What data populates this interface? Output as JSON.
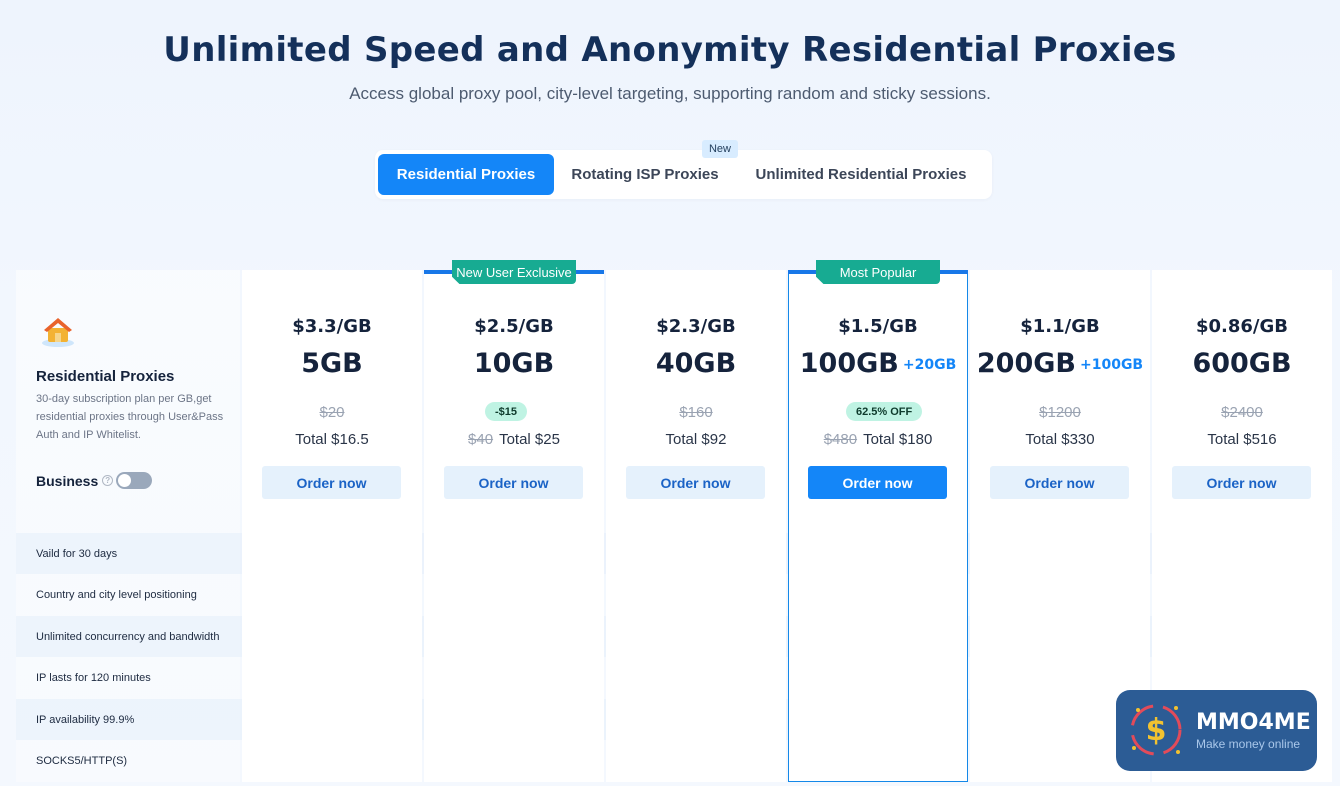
{
  "header": {
    "title": "Unlimited Speed and Anonymity Residential Proxies",
    "subtitle": "Access global proxy pool, city-level targeting, supporting random and sticky sessions."
  },
  "tabs": [
    {
      "label": "Residential Proxies",
      "active": true
    },
    {
      "label": "Rotating ISP Proxies",
      "active": false
    },
    {
      "label": "Unlimited Residential Proxies",
      "active": false
    }
  ],
  "new_badge": "New",
  "product": {
    "icon": "house-icon",
    "name": "Residential Proxies",
    "description": "30-day subscription plan per GB,get residential proxies through User&Pass Auth and IP Whitelist.",
    "business_label": "Business",
    "business_toggle": false
  },
  "plans": [
    {
      "price_per_gb": "$3.3/GB",
      "size": "5GB",
      "bonus": "",
      "original": "$20",
      "discount": "",
      "total_old": "",
      "total": "Total $16.5",
      "order": "Order now",
      "ribbon": ""
    },
    {
      "price_per_gb": "$2.5/GB",
      "size": "10GB",
      "bonus": "",
      "original": "",
      "discount": "-$15",
      "total_old": "$40",
      "total": "Total $25",
      "order": "Order now",
      "ribbon": "New User Exclusive"
    },
    {
      "price_per_gb": "$2.3/GB",
      "size": "40GB",
      "bonus": "",
      "original": "$160",
      "discount": "",
      "total_old": "",
      "total": "Total $92",
      "order": "Order now",
      "ribbon": ""
    },
    {
      "price_per_gb": "$1.5/GB",
      "size": "100GB",
      "bonus": "+20GB",
      "original": "",
      "discount": "62.5% OFF",
      "total_old": "$480",
      "total": "Total $180",
      "order": "Order now",
      "ribbon": "Most Popular"
    },
    {
      "price_per_gb": "$1.1/GB",
      "size": "200GB",
      "bonus": "+100GB",
      "original": "$1200",
      "discount": "",
      "total_old": "",
      "total": "Total $330",
      "order": "Order now",
      "ribbon": ""
    },
    {
      "price_per_gb": "$0.86/GB",
      "size": "600GB",
      "bonus": "",
      "original": "$2400",
      "discount": "",
      "total_old": "",
      "total": "Total $516",
      "order": "Order now",
      "ribbon": ""
    }
  ],
  "features": [
    "Vaild for 30 days",
    "Country and city level positioning",
    "Unlimited concurrency and bandwidth",
    "IP lasts for 120 minutes",
    "IP availability 99.9%",
    "SOCKS5/HTTP(S)"
  ],
  "colors": {
    "accent": "#1486f8",
    "ribbon": "#17ab92",
    "check": "#1486f8"
  },
  "watermark": {
    "title": "MMO4ME",
    "subtitle": "Make money online"
  }
}
